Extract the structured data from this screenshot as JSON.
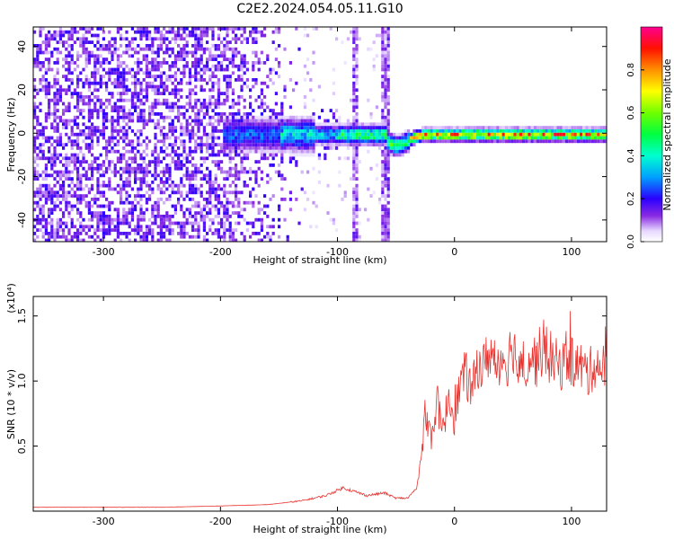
{
  "figure_title": "C2E2.2024.054.05.11.G10",
  "chart_data": [
    {
      "type": "heatmap",
      "title": "C2E2.2024.054.05.11.G10",
      "xlabel": "Height of straight line (km)",
      "ylabel": "Frequency (Hz)",
      "xlim": [
        -360,
        130
      ],
      "ylim": [
        -50,
        49
      ],
      "x_ticks": [
        -300,
        -200,
        -100,
        0,
        100
      ],
      "y_ticks": [
        -40,
        -20,
        0,
        20,
        40
      ],
      "colorbar": {
        "label": "Normalized spectral amplitude",
        "range": [
          0,
          1
        ],
        "ticks": [
          0.0,
          0.2,
          0.4,
          0.6,
          0.8
        ]
      },
      "features": {
        "noise_region_x": [
          -360,
          -130
        ],
        "carrier_frequency_hz": 0,
        "carrier_visible_from_x": -200,
        "vertical_streaks_x": [
          -86,
          -60
        ],
        "low_offset_dip": {
          "x": -50,
          "freq_hz": -5
        },
        "peak_amplitude_region_x": [
          -40,
          130
        ]
      },
      "grid": false
    },
    {
      "type": "line",
      "xlabel": "Height of straight line (km)",
      "ylabel": "SNR (10 * v/v)",
      "y_multiplier": "(x10⁴)",
      "xlim": [
        -360,
        130
      ],
      "ylim": [
        0,
        1.65
      ],
      "x_ticks": [
        -300,
        -200,
        -100,
        0,
        100
      ],
      "y_ticks": [
        0.5,
        1.0,
        1.5
      ],
      "y_tick_labels": [
        "0.5",
        "1.0",
        "1.5"
      ],
      "color": "#e8332f",
      "series": [
        {
          "x": [
            -360,
            -300,
            -250,
            -200,
            -160,
            -130,
            -110,
            -95,
            -85,
            -75,
            -60,
            -50,
            -40,
            -32,
            -27,
            -25,
            -20,
            -15,
            -10,
            -5,
            0,
            5,
            10,
            15,
            20,
            25,
            30,
            35,
            40,
            45,
            50,
            55,
            60,
            65,
            70,
            75,
            80,
            85,
            90,
            95,
            100,
            105,
            110,
            115,
            120,
            125,
            130
          ],
          "y": [
            0.03,
            0.03,
            0.03,
            0.04,
            0.05,
            0.08,
            0.12,
            0.18,
            0.15,
            0.12,
            0.14,
            0.1,
            0.1,
            0.18,
            0.5,
            0.8,
            0.55,
            0.85,
            0.6,
            0.9,
            0.7,
            1.0,
            1.05,
            0.9,
            1.15,
            1.1,
            1.25,
            1.1,
            1.2,
            1.15,
            1.3,
            1.05,
            1.1,
            1.2,
            1.15,
            1.25,
            1.2,
            1.15,
            1.1,
            1.2,
            1.15,
            1.12,
            1.1,
            1.05,
            1.15,
            1.1,
            1.1
          ]
        }
      ]
    }
  ]
}
